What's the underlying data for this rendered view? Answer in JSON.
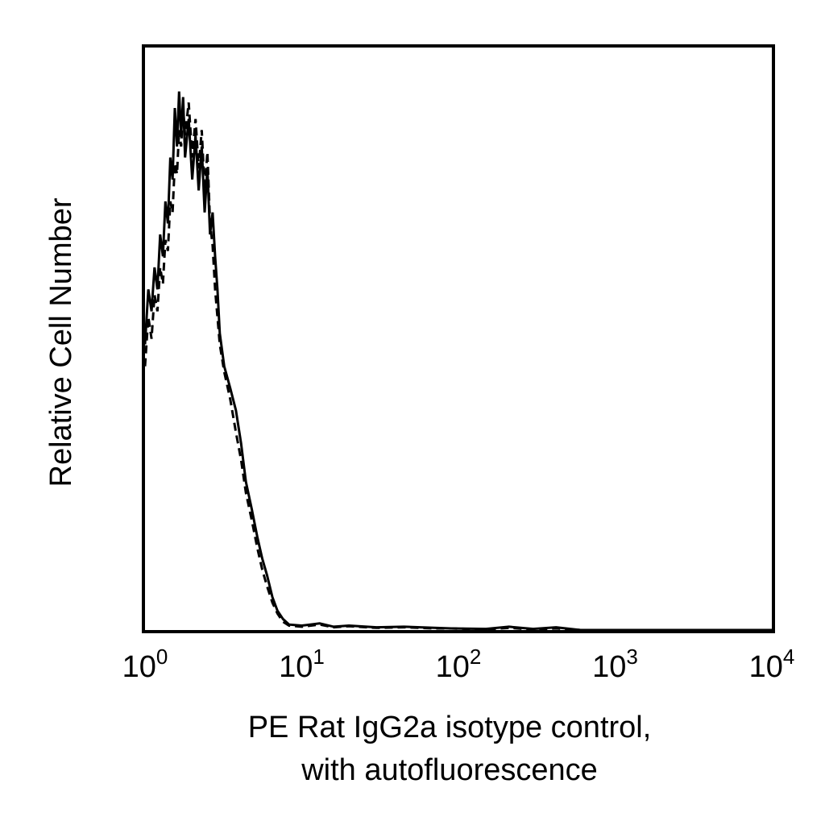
{
  "chart_data": {
    "type": "histogram",
    "xlabel_lines": [
      "PE Rat IgG2a isotype control,",
      "with autofluorescence"
    ],
    "ylabel": "Relative Cell Number",
    "x_scale": "log",
    "x_ticks": [
      {
        "value": 1,
        "base": "10",
        "exp": "0"
      },
      {
        "value": 10,
        "base": "10",
        "exp": "1"
      },
      {
        "value": 100,
        "base": "10",
        "exp": "2"
      },
      {
        "value": 1000,
        "base": "10",
        "exp": "3"
      },
      {
        "value": 10000,
        "base": "10",
        "exp": "4"
      }
    ],
    "xlim": [
      1,
      10000
    ],
    "ylim": [
      0,
      100
    ],
    "grid": false,
    "legend": "none",
    "line_color": "#000000",
    "series": [
      {
        "style": "solid",
        "points": [
          [
            1.0,
            52
          ],
          [
            1.05,
            62
          ],
          [
            1.1,
            58
          ],
          [
            1.15,
            66
          ],
          [
            1.2,
            62
          ],
          [
            1.25,
            72
          ],
          [
            1.3,
            68
          ],
          [
            1.35,
            78
          ],
          [
            1.4,
            74
          ],
          [
            1.45,
            86
          ],
          [
            1.5,
            82
          ],
          [
            1.55,
            95
          ],
          [
            1.6,
            88
          ],
          [
            1.65,
            98
          ],
          [
            1.7,
            90
          ],
          [
            1.75,
            97
          ],
          [
            1.8,
            86
          ],
          [
            1.9,
            93
          ],
          [
            2.0,
            82
          ],
          [
            2.1,
            90
          ],
          [
            2.2,
            80
          ],
          [
            2.3,
            88
          ],
          [
            2.4,
            76
          ],
          [
            2.5,
            84
          ],
          [
            2.6,
            72
          ],
          [
            2.7,
            76
          ],
          [
            2.8,
            68
          ],
          [
            2.9,
            62
          ],
          [
            3.0,
            54
          ],
          [
            3.2,
            48
          ],
          [
            3.5,
            44
          ],
          [
            3.8,
            40
          ],
          [
            4.1,
            34
          ],
          [
            4.4,
            27
          ],
          [
            4.8,
            22
          ],
          [
            5.2,
            17
          ],
          [
            5.6,
            13
          ],
          [
            6.0,
            10
          ],
          [
            6.5,
            6
          ],
          [
            7.0,
            3.5
          ],
          [
            7.6,
            2
          ],
          [
            8.3,
            1
          ],
          [
            10,
            0.8
          ],
          [
            13,
            1.2
          ],
          [
            16,
            0.6
          ],
          [
            20,
            0.8
          ],
          [
            30,
            0.5
          ],
          [
            45,
            0.6
          ],
          [
            70,
            0.4
          ],
          [
            90,
            0.3
          ],
          [
            150,
            0.2
          ],
          [
            210,
            0.6
          ],
          [
            300,
            0.2
          ],
          [
            420,
            0.5
          ],
          [
            600,
            0
          ],
          [
            10000,
            0
          ]
        ]
      },
      {
        "style": "dashed",
        "points": [
          [
            1.0,
            48
          ],
          [
            1.05,
            57
          ],
          [
            1.1,
            53
          ],
          [
            1.15,
            61
          ],
          [
            1.2,
            58
          ],
          [
            1.25,
            66
          ],
          [
            1.3,
            63
          ],
          [
            1.35,
            71
          ],
          [
            1.4,
            69
          ],
          [
            1.45,
            78
          ],
          [
            1.5,
            76
          ],
          [
            1.55,
            85
          ],
          [
            1.6,
            83
          ],
          [
            1.65,
            91
          ],
          [
            1.7,
            88
          ],
          [
            1.75,
            95
          ],
          [
            1.8,
            90
          ],
          [
            1.9,
            96
          ],
          [
            2.0,
            86
          ],
          [
            2.1,
            93
          ],
          [
            2.2,
            84
          ],
          [
            2.3,
            91
          ],
          [
            2.4,
            80
          ],
          [
            2.5,
            87
          ],
          [
            2.6,
            74
          ],
          [
            2.7,
            70
          ],
          [
            2.8,
            62
          ],
          [
            2.9,
            57
          ],
          [
            3.0,
            52
          ],
          [
            3.2,
            47
          ],
          [
            3.5,
            42
          ],
          [
            3.8,
            36
          ],
          [
            4.1,
            31
          ],
          [
            4.4,
            25
          ],
          [
            4.8,
            20
          ],
          [
            5.2,
            15
          ],
          [
            5.6,
            11
          ],
          [
            6.0,
            8
          ],
          [
            6.5,
            5
          ],
          [
            7.0,
            3
          ],
          [
            7.6,
            1.5
          ],
          [
            8.3,
            0.8
          ],
          [
            10,
            0.6
          ],
          [
            13,
            1.0
          ],
          [
            16,
            0.5
          ],
          [
            20,
            0.7
          ],
          [
            30,
            0.4
          ],
          [
            45,
            0.5
          ],
          [
            70,
            0.3
          ],
          [
            90,
            0.3
          ],
          [
            150,
            0.1
          ],
          [
            210,
            0.4
          ],
          [
            300,
            0.1
          ],
          [
            420,
            0.3
          ],
          [
            600,
            0
          ],
          [
            10000,
            0
          ]
        ]
      }
    ]
  }
}
